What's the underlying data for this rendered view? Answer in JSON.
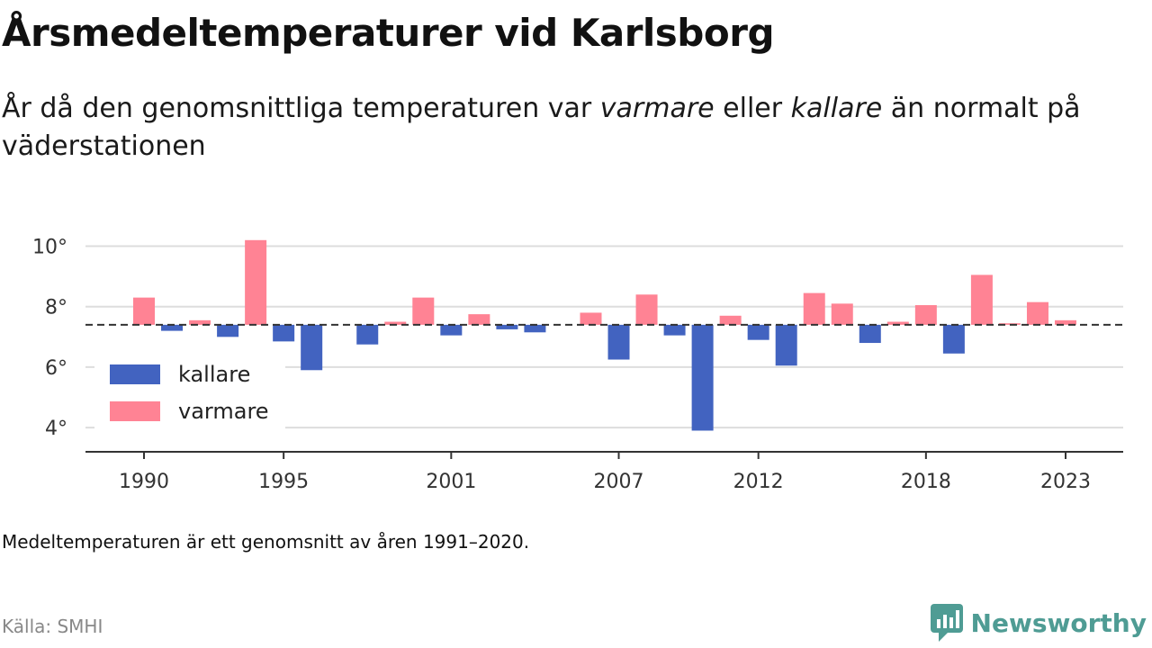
{
  "title": "Årsmedeltemperaturer vid Karlsborg",
  "subtitle": {
    "part1": "År då den genomsnittliga temperaturen var ",
    "warm": "varmare",
    "part2": " eller ",
    "cold": "kallare",
    "part3": " än normalt på väderstationen"
  },
  "note": "Medeltemperaturen är ett genomsnitt av åren 1991–2020.",
  "source": "Källa: SMHI",
  "brand": {
    "name": "Newsworthy",
    "icon": "bar-chart-speech-bubble-icon"
  },
  "colors": {
    "warm": "#ff8394",
    "cold": "#4263c0",
    "brand": "#4f9c94"
  },
  "chart_data": {
    "type": "bar",
    "baseline": 7.4,
    "years": [
      1990,
      1991,
      1992,
      1993,
      1994,
      1995,
      1996,
      1997,
      1998,
      1999,
      2000,
      2001,
      2002,
      2003,
      2004,
      2005,
      2006,
      2007,
      2008,
      2009,
      2010,
      2011,
      2012,
      2013,
      2014,
      2015,
      2016,
      2017,
      2018,
      2019,
      2020,
      2021,
      2022,
      2023
    ],
    "values": [
      8.3,
      7.2,
      7.55,
      7.0,
      10.2,
      6.85,
      5.9,
      null,
      6.75,
      7.5,
      8.3,
      7.05,
      7.75,
      7.25,
      7.15,
      null,
      7.8,
      6.25,
      8.4,
      7.05,
      3.9,
      7.7,
      6.9,
      6.05,
      8.45,
      8.1,
      6.8,
      7.5,
      8.05,
      6.45,
      9.05,
      7.45,
      8.15,
      7.55
    ],
    "y_ticks": [
      4,
      6,
      8,
      10
    ],
    "y_tick_labels": [
      "4°",
      "6°",
      "8°",
      "10°"
    ],
    "x_ticks": [
      1990,
      1995,
      2001,
      2007,
      2012,
      2018,
      2023
    ],
    "x_tick_labels": [
      "1990",
      "1995",
      "2001",
      "2007",
      "2012",
      "2018",
      "2023"
    ],
    "ylim": [
      3.2,
      10.7
    ],
    "grid": true,
    "legend": [
      {
        "label": "kallare",
        "color": "#4263c0"
      },
      {
        "label": "varmare",
        "color": "#ff8394"
      }
    ],
    "legend_position": "bottom-left"
  }
}
